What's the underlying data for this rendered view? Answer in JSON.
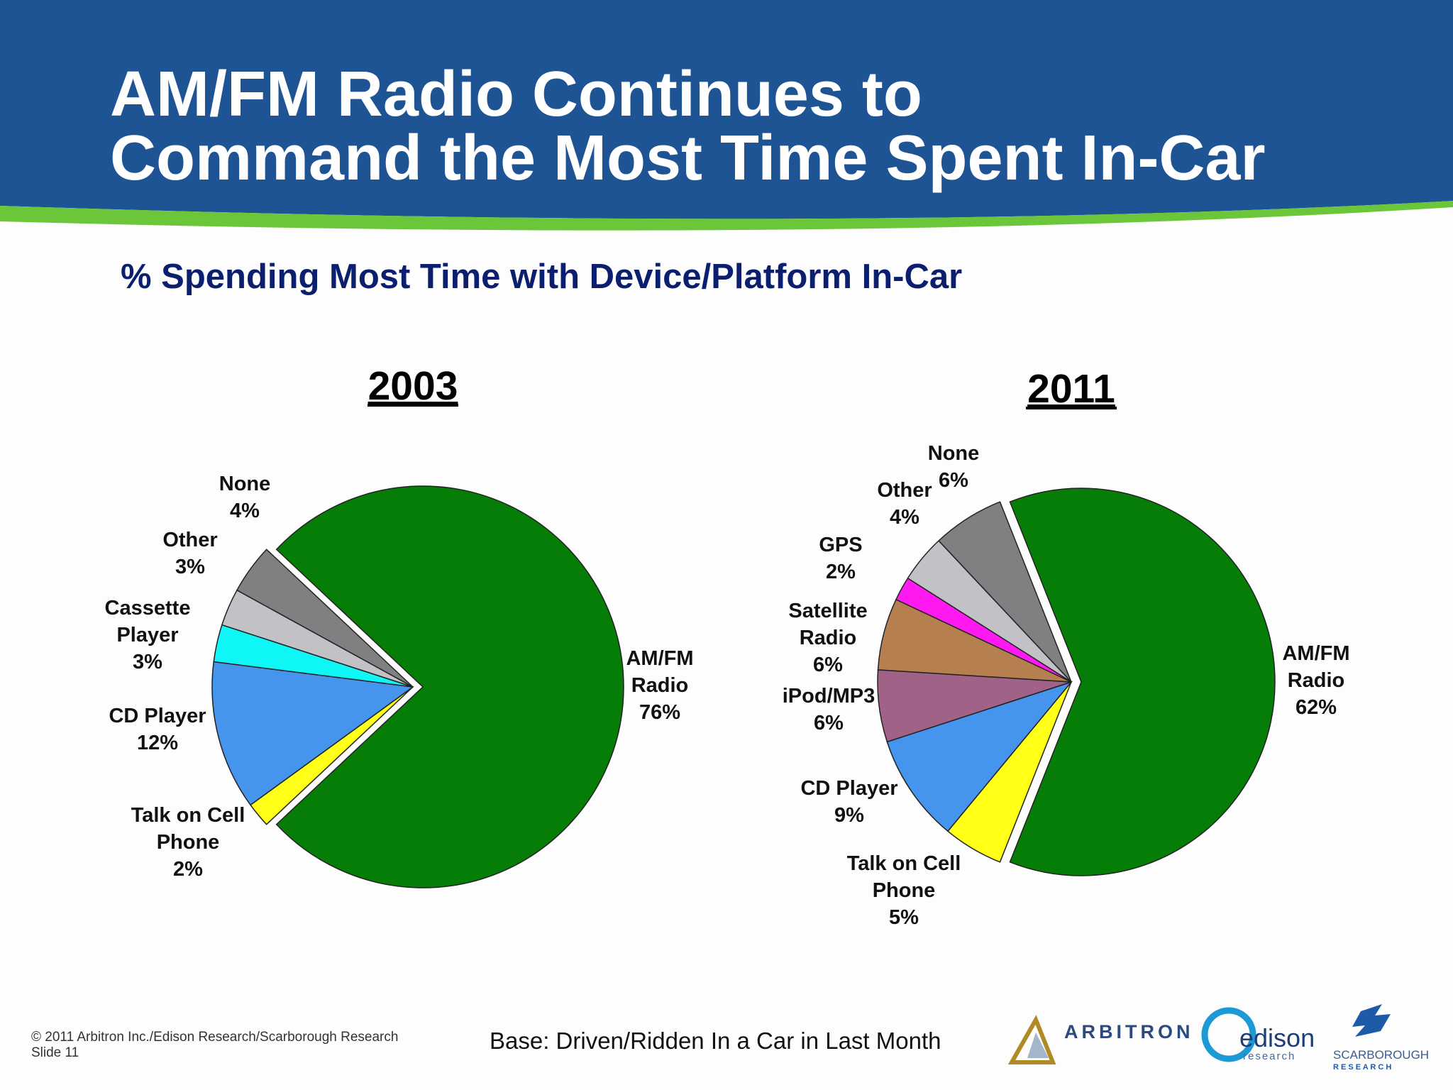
{
  "header": {
    "title_line1": "AM/FM Radio Continues to",
    "title_line2": "Command the Most Time Spent In-Car",
    "subtitle": "% Spending Most Time with Device/Platform In-Car"
  },
  "colors": {
    "header_bg": "#1e5494",
    "accent_green": "#6cc63a",
    "subtitle": "#0b1f6e"
  },
  "chart_data": [
    {
      "type": "pie",
      "title": "2003",
      "slices": [
        {
          "label_lines": [
            "AM/FM",
            "Radio",
            "76%"
          ],
          "name": "AM/FM Radio",
          "value": 76,
          "color": "#067d06",
          "exploded": true
        },
        {
          "label_lines": [
            "Talk on Cell",
            "Phone",
            "2%"
          ],
          "name": "Talk on Cell Phone",
          "value": 2,
          "color": "#ffff17"
        },
        {
          "label_lines": [
            "CD Player",
            "12%"
          ],
          "name": "CD Player",
          "value": 12,
          "color": "#4594ee"
        },
        {
          "label_lines": [
            "Cassette",
            "Player",
            "3%"
          ],
          "name": "Cassette Player",
          "value": 3,
          "color": "#0ff6f6"
        },
        {
          "label_lines": [
            "Other",
            "3%"
          ],
          "name": "Other",
          "value": 3,
          "color": "#c2c2c6"
        },
        {
          "label_lines": [
            "None",
            "4%"
          ],
          "name": "None",
          "value": 4,
          "color": "#808083"
        }
      ]
    },
    {
      "type": "pie",
      "title": "2011",
      "slices": [
        {
          "label_lines": [
            "AM/FM",
            "Radio",
            "62%"
          ],
          "name": "AM/FM Radio",
          "value": 62,
          "color": "#067d06",
          "exploded": true
        },
        {
          "label_lines": [
            "Talk on Cell",
            "Phone",
            "5%"
          ],
          "name": "Talk on Cell Phone",
          "value": 5,
          "color": "#ffff17"
        },
        {
          "label_lines": [
            "CD Player",
            "9%"
          ],
          "name": "CD Player",
          "value": 9,
          "color": "#4594ee"
        },
        {
          "label_lines": [
            "iPod/MP3",
            "6%"
          ],
          "name": "iPod/MP3",
          "value": 6,
          "color": "#a06287"
        },
        {
          "label_lines": [
            "Satellite",
            "Radio",
            "6%"
          ],
          "name": "Satellite Radio",
          "value": 6,
          "color": "#b57f4f"
        },
        {
          "label_lines": [
            "GPS",
            "2%"
          ],
          "name": "GPS",
          "value": 2,
          "color": "#ff1af1"
        },
        {
          "label_lines": [
            "Other",
            "4%"
          ],
          "name": "Other",
          "value": 4,
          "color": "#c2c2c6"
        },
        {
          "label_lines": [
            "None",
            "6%"
          ],
          "name": "None",
          "value": 6,
          "color": "#808083"
        }
      ]
    }
  ],
  "footer": {
    "copyright": "© 2011 Arbitron Inc./Edison Research/Scarborough Research",
    "slide_label": "Slide 11",
    "base_note": "Base: Driven/Ridden In a Car in Last Month"
  },
  "logos": {
    "arbitron": "ARBITRON",
    "edison_main": "edison",
    "edison_sub": "research",
    "scarborough_main": "SCARBOROUGH",
    "scarborough_sub": "R E S E A R C H"
  }
}
